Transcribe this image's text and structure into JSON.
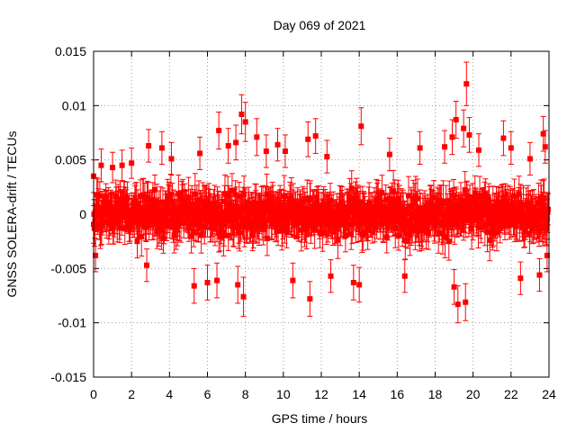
{
  "chart_data": {
    "type": "scatter",
    "title": "Day 069 of 2021",
    "xlabel": "GPS time / hours",
    "ylabel": "GNSS SOLERA-drift / TECUs",
    "xlim": [
      0,
      24
    ],
    "ylim": [
      -0.015,
      0.015
    ],
    "x_ticks": [
      "0",
      "2",
      "4",
      "6",
      "8",
      "10",
      "12",
      "14",
      "16",
      "18",
      "20",
      "22",
      "24"
    ],
    "y_ticks": [
      "-0.015",
      "-0.01",
      "-0.005",
      "0",
      "0.005",
      "0.01",
      "0.015"
    ],
    "grid": true,
    "marker": "filled-square",
    "error_bars": true,
    "series": [
      {
        "color": "#ff0000",
        "note_points": [
          {
            "x": 0.0,
            "y": 0.0035,
            "err": 0.0015
          },
          {
            "x": 0.1,
            "y": -0.0038,
            "err": 0.0015
          },
          {
            "x": 0.4,
            "y": 0.0045,
            "err": 0.0015
          },
          {
            "x": 1.0,
            "y": 0.0043,
            "err": 0.0014
          },
          {
            "x": 1.5,
            "y": 0.0045,
            "err": 0.0014
          },
          {
            "x": 2.0,
            "y": 0.0047,
            "err": 0.0014
          },
          {
            "x": 2.9,
            "y": 0.0063,
            "err": 0.0015
          },
          {
            "x": 2.8,
            "y": -0.0047,
            "err": 0.0015
          },
          {
            "x": 3.6,
            "y": 0.0061,
            "err": 0.0015
          },
          {
            "x": 4.1,
            "y": 0.0051,
            "err": 0.0015
          },
          {
            "x": 5.3,
            "y": -0.0066,
            "err": 0.0016
          },
          {
            "x": 5.6,
            "y": 0.0056,
            "err": 0.0015
          },
          {
            "x": 6.0,
            "y": -0.0063,
            "err": 0.0016
          },
          {
            "x": 6.5,
            "y": -0.0061,
            "err": 0.0016
          },
          {
            "x": 6.6,
            "y": 0.0077,
            "err": 0.0017
          },
          {
            "x": 7.1,
            "y": 0.0063,
            "err": 0.0016
          },
          {
            "x": 7.5,
            "y": 0.0066,
            "err": 0.0016
          },
          {
            "x": 7.6,
            "y": -0.0065,
            "err": 0.0017
          },
          {
            "x": 7.8,
            "y": 0.0092,
            "err": 0.0018
          },
          {
            "x": 7.9,
            "y": -0.0076,
            "err": 0.0018
          },
          {
            "x": 8.0,
            "y": 0.0085,
            "err": 0.0018
          },
          {
            "x": 8.6,
            "y": 0.0071,
            "err": 0.0017
          },
          {
            "x": 9.1,
            "y": 0.0058,
            "err": 0.0015
          },
          {
            "x": 9.7,
            "y": 0.0064,
            "err": 0.0015
          },
          {
            "x": 10.1,
            "y": 0.0058,
            "err": 0.0015
          },
          {
            "x": 10.5,
            "y": -0.0061,
            "err": 0.0016
          },
          {
            "x": 11.3,
            "y": 0.0069,
            "err": 0.0016
          },
          {
            "x": 11.4,
            "y": -0.0078,
            "err": 0.0016
          },
          {
            "x": 11.7,
            "y": 0.0072,
            "err": 0.0016
          },
          {
            "x": 12.3,
            "y": 0.0053,
            "err": 0.0015
          },
          {
            "x": 12.5,
            "y": -0.0057,
            "err": 0.0015
          },
          {
            "x": 13.7,
            "y": -0.0063,
            "err": 0.0016
          },
          {
            "x": 14.0,
            "y": -0.0065,
            "err": 0.0016
          },
          {
            "x": 14.1,
            "y": 0.0081,
            "err": 0.0017
          },
          {
            "x": 15.6,
            "y": 0.0055,
            "err": 0.0015
          },
          {
            "x": 16.4,
            "y": -0.0057,
            "err": 0.0015
          },
          {
            "x": 17.2,
            "y": 0.0061,
            "err": 0.0015
          },
          {
            "x": 18.5,
            "y": 0.0062,
            "err": 0.0015
          },
          {
            "x": 18.9,
            "y": 0.0071,
            "err": 0.0016
          },
          {
            "x": 19.0,
            "y": -0.0067,
            "err": 0.0016
          },
          {
            "x": 19.1,
            "y": 0.0087,
            "err": 0.0017
          },
          {
            "x": 19.2,
            "y": -0.0083,
            "err": 0.0017
          },
          {
            "x": 19.5,
            "y": 0.0079,
            "err": 0.0017
          },
          {
            "x": 19.6,
            "y": -0.0081,
            "err": 0.0017
          },
          {
            "x": 19.65,
            "y": 0.012,
            "err": 0.002
          },
          {
            "x": 19.8,
            "y": 0.0073,
            "err": 0.0016
          },
          {
            "x": 20.3,
            "y": 0.0059,
            "err": 0.0015
          },
          {
            "x": 21.6,
            "y": 0.007,
            "err": 0.0016
          },
          {
            "x": 22.0,
            "y": 0.0061,
            "err": 0.0015
          },
          {
            "x": 22.5,
            "y": -0.0059,
            "err": 0.0015
          },
          {
            "x": 23.0,
            "y": 0.0051,
            "err": 0.0015
          },
          {
            "x": 23.5,
            "y": -0.0056,
            "err": 0.0015
          },
          {
            "x": 23.7,
            "y": 0.0074,
            "err": 0.0016
          },
          {
            "x": 23.8,
            "y": 0.0062,
            "err": 0.0015
          },
          {
            "x": 23.9,
            "y": -0.0038,
            "err": 0.0015
          }
        ],
        "bulk": {
          "x_start": 0.0,
          "x_end": 23.95,
          "step_hours": 0.025,
          "spread_ymax": 0.0028,
          "err_typical": 0.0016
        }
      }
    ]
  }
}
